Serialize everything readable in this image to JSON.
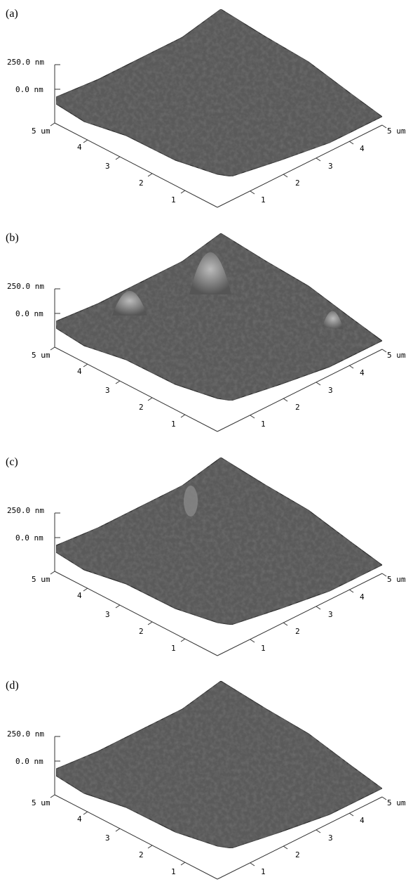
{
  "panels": [
    {
      "label": "(a)",
      "z_labels": [
        "250.0 nm",
        "0.0 nm"
      ],
      "left_axis": [
        "5 um",
        "4",
        "3",
        "2",
        "1"
      ],
      "right_axis": [
        "1",
        "2",
        "3",
        "4",
        "5 um"
      ]
    },
    {
      "label": "(b)",
      "z_labels": [
        "250.0 nm",
        "0.0 nm"
      ],
      "left_axis": [
        "5 um",
        "4",
        "3",
        "2",
        "1"
      ],
      "right_axis": [
        "1",
        "2",
        "3",
        "4",
        "5 um"
      ]
    },
    {
      "label": "(c)",
      "z_labels": [
        "250.0 nm",
        "0.0 nm"
      ],
      "left_axis": [
        "5 um",
        "4",
        "3",
        "2",
        "1"
      ],
      "right_axis": [
        "1",
        "2",
        "3",
        "4",
        "5 um"
      ]
    },
    {
      "label": "(d)",
      "z_labels": [
        "250.0 nm",
        "0.0 nm"
      ],
      "left_axis": [
        "5 um",
        "4",
        "3",
        "2",
        "1"
      ],
      "right_axis": [
        "1",
        "2",
        "3",
        "4",
        "5 um"
      ]
    }
  ]
}
